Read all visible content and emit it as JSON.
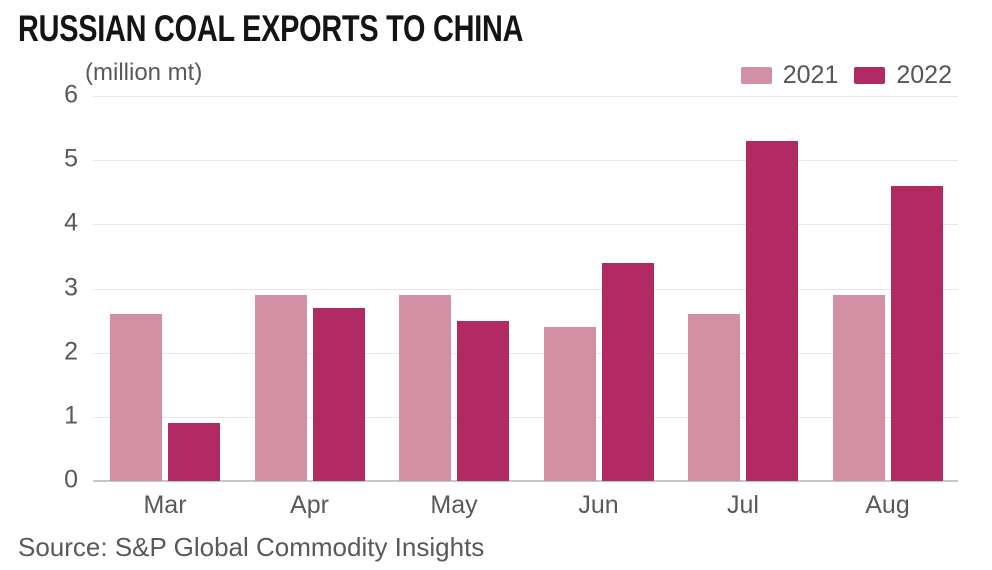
{
  "header": {
    "title": "RUSSIAN COAL EXPORTS TO CHINA",
    "unit_label": "(million mt)"
  },
  "footer": {
    "source": "Source: S&P Global Commodity Insights"
  },
  "colors": {
    "series_2021": "#D38FA4",
    "series_2022": "#B22A64",
    "title_text": "#141414",
    "axis_text": "#58595B",
    "gridline": "#E8E8E8",
    "baseline": "#C6C6C8",
    "background": "#FFFFFF"
  },
  "chart_data": {
    "type": "bar",
    "title": "RUSSIAN COAL EXPORTS TO CHINA",
    "subtitle": "(million mt)",
    "categories": [
      "Mar",
      "Apr",
      "May",
      "Jun",
      "Jul",
      "Aug"
    ],
    "series": [
      {
        "name": "2021",
        "color": "#D38FA4",
        "values": [
          2.6,
          2.9,
          2.9,
          2.4,
          2.6,
          2.9
        ]
      },
      {
        "name": "2022",
        "color": "#B22A64",
        "values": [
          0.9,
          2.7,
          2.5,
          3.4,
          5.3,
          4.6
        ]
      }
    ],
    "xlabel": "",
    "ylabel": "(million mt)",
    "ylim": [
      0,
      6
    ],
    "yticks": [
      0,
      1,
      2,
      3,
      4,
      5,
      6
    ],
    "grid": true,
    "legend_position": "top-right",
    "source": "Source: S&P Global Commodity Insights"
  }
}
